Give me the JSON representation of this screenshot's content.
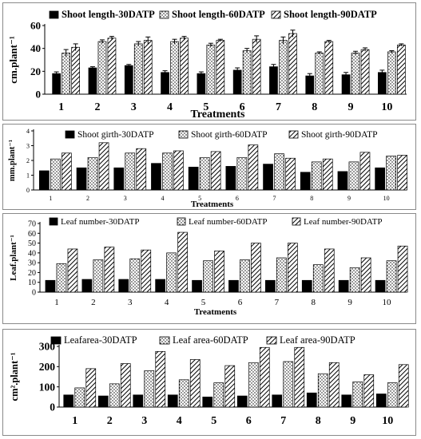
{
  "colors": {
    "s30": "#000000",
    "s60": "#ffffff",
    "s90": "#ffffff",
    "axis": "#000000"
  },
  "chart_data": [
    {
      "type": "bar",
      "legend_position": "top",
      "ylabel": "cm.plant⁻¹",
      "xlabel": "Treatments",
      "ylim": [
        0,
        60
      ],
      "yticks": [
        0,
        20,
        40,
        60
      ],
      "error_bars": true,
      "categories": [
        "1",
        "2",
        "3",
        "4",
        "5",
        "6",
        "7",
        "8",
        "9",
        "10"
      ],
      "series": [
        {
          "name": "Shoot length-30DATP",
          "pattern": "solid",
          "values": [
            18,
            23,
            25,
            19,
            18,
            21,
            24,
            16,
            17,
            19
          ],
          "errors": [
            1.5,
            1,
            1,
            1.5,
            1.5,
            2,
            2,
            2,
            2,
            2
          ]
        },
        {
          "name": "Shoot length-60DATP",
          "pattern": "dots",
          "values": [
            36,
            46,
            44,
            46,
            43,
            38,
            47,
            36,
            36,
            37
          ],
          "errors": [
            3,
            1.5,
            2,
            2,
            1.5,
            2,
            3,
            1,
            1.5,
            1
          ]
        },
        {
          "name": "Shoot length-90DATP",
          "pattern": "hatch",
          "values": [
            41,
            49,
            47,
            49,
            47,
            48,
            53,
            46,
            39,
            43
          ],
          "errors": [
            3,
            1.5,
            3,
            1.5,
            1,
            3,
            3,
            1,
            1.5,
            1
          ]
        }
      ]
    },
    {
      "type": "bar",
      "legend_position": "top",
      "ylabel": "mm.plant⁻¹",
      "xlabel": "Treatments",
      "ylim": [
        0,
        4
      ],
      "yticks": [
        0,
        1,
        2,
        3,
        4
      ],
      "categories": [
        "1",
        "2",
        "3",
        "4",
        "5",
        "6",
        "7",
        "8",
        "9",
        "10"
      ],
      "series": [
        {
          "name": "Shoot girth-30DATP",
          "pattern": "solid",
          "values": [
            1.3,
            1.5,
            1.5,
            1.8,
            1.55,
            1.6,
            1.75,
            1.2,
            1.25,
            1.5
          ]
        },
        {
          "name": "Shoot girth-60DATP",
          "pattern": "dots",
          "values": [
            2.1,
            2.2,
            2.5,
            2.5,
            2.2,
            2.2,
            2.45,
            1.9,
            1.9,
            2.3
          ]
        },
        {
          "name": "Shoot girth-90DATP",
          "pattern": "hatch",
          "values": [
            2.5,
            3.2,
            2.8,
            2.65,
            2.6,
            3.05,
            2.15,
            2.1,
            2.55,
            2.35
          ]
        }
      ]
    },
    {
      "type": "bar",
      "legend_position": "top",
      "ylabel": "Leaf.plant⁻¹",
      "xlabel": "Treatments",
      "ylim": [
        0,
        70
      ],
      "yticks": [
        0,
        10,
        20,
        30,
        40,
        50,
        60,
        70
      ],
      "categories": [
        "1",
        "2",
        "3",
        "4",
        "5",
        "6",
        "7",
        "8",
        "9",
        "10"
      ],
      "series": [
        {
          "name": "Leaf number-30DATP",
          "pattern": "solid",
          "values": [
            12,
            13,
            13,
            13,
            12,
            12,
            12,
            12,
            12,
            12
          ]
        },
        {
          "name": "Leaf number-60DATP",
          "pattern": "dots",
          "values": [
            29,
            33,
            34,
            40,
            32,
            33,
            35,
            28,
            25,
            32
          ]
        },
        {
          "name": "Leaf number-90DATP",
          "pattern": "hatch",
          "values": [
            44,
            46,
            43,
            61,
            42,
            50,
            50,
            44,
            35,
            47
          ]
        }
      ]
    },
    {
      "type": "bar",
      "legend_position": "top",
      "ylabel": "cm².plant⁻¹",
      "xlabel": "",
      "ylim": [
        0,
        300
      ],
      "yticks": [
        0,
        100,
        200,
        300
      ],
      "categories": [
        "1",
        "2",
        "3",
        "4",
        "5",
        "6",
        "7",
        "8",
        "9",
        "10"
      ],
      "series": [
        {
          "name": "Leafarea-30DATP",
          "pattern": "solid",
          "values": [
            60,
            55,
            60,
            60,
            50,
            55,
            60,
            70,
            60,
            65
          ]
        },
        {
          "name": "Leaf area-60DATP",
          "pattern": "dots",
          "values": [
            95,
            115,
            180,
            135,
            120,
            220,
            225,
            165,
            125,
            120
          ]
        },
        {
          "name": "Leaf area-90DATP",
          "pattern": "hatch",
          "values": [
            190,
            215,
            275,
            235,
            205,
            295,
            295,
            220,
            160,
            210
          ]
        }
      ]
    }
  ]
}
